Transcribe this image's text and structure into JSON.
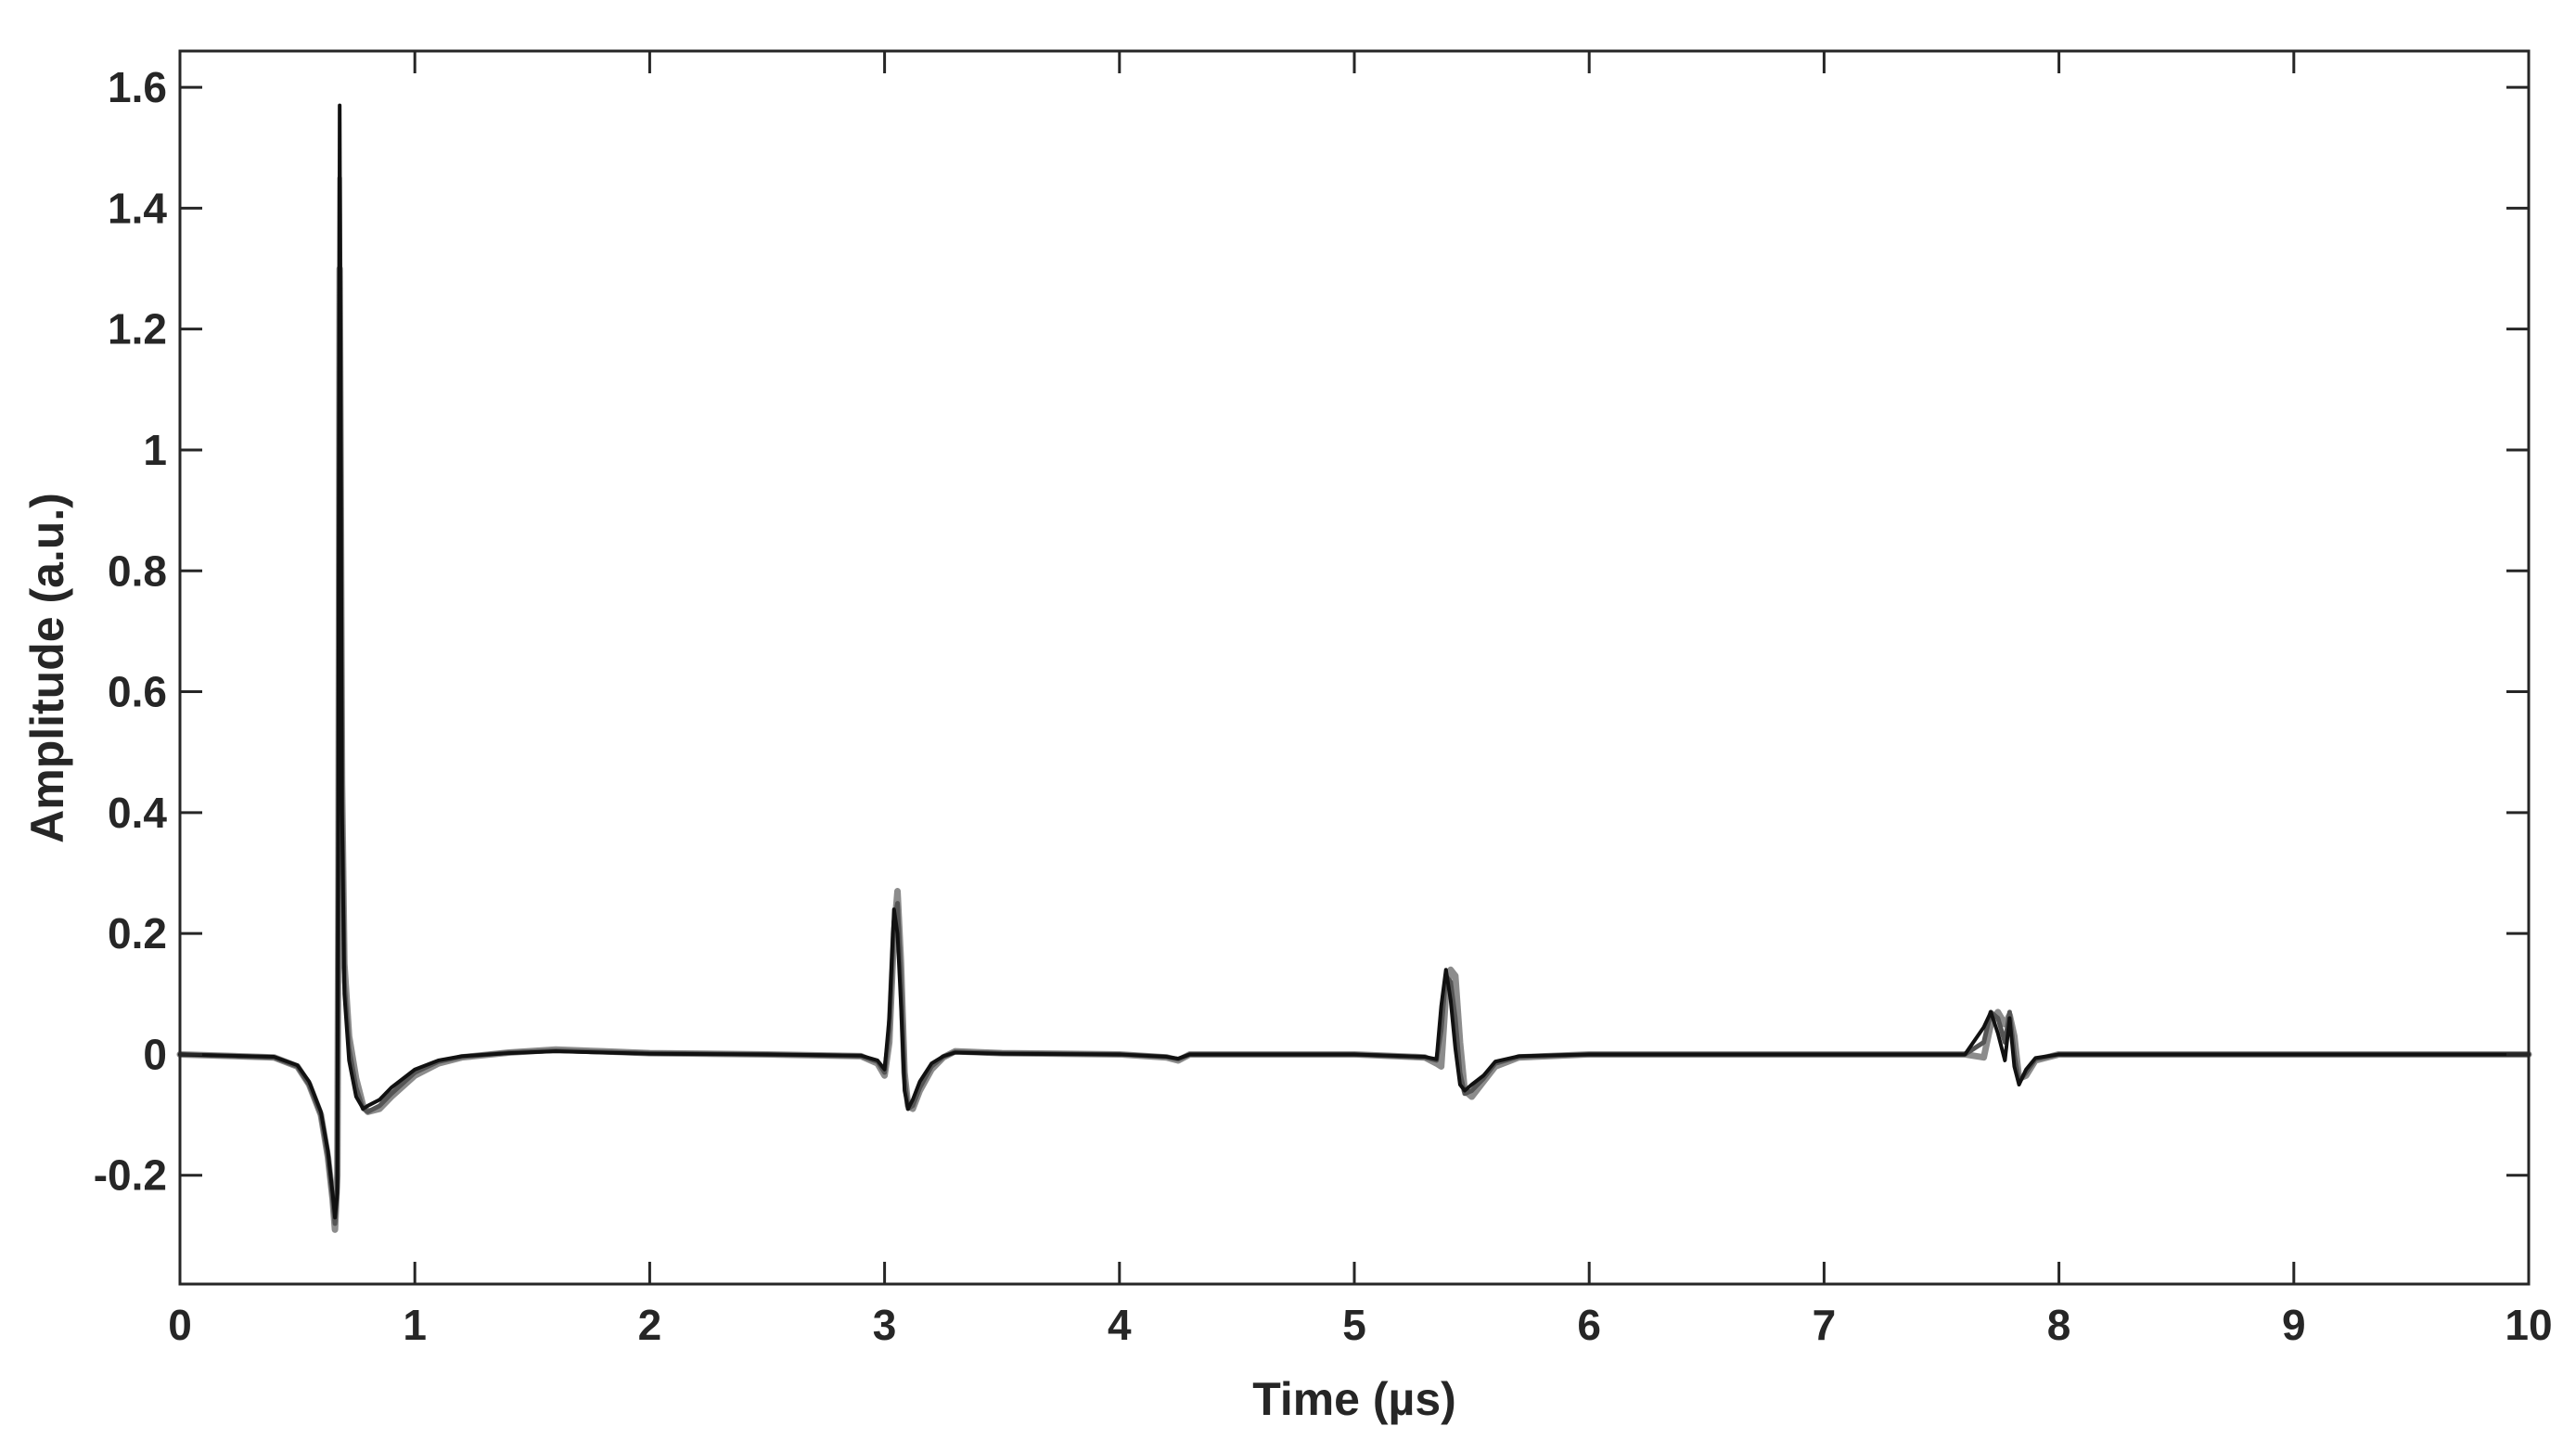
{
  "chart_data": {
    "type": "line",
    "title": "",
    "xlabel": "Time (µs)",
    "ylabel": "Amplitude (a.u.)",
    "xlim": [
      0,
      10
    ],
    "ylim": [
      -0.38,
      1.66
    ],
    "xticks": [
      0,
      1,
      2,
      3,
      4,
      5,
      6,
      7,
      8,
      9,
      10
    ],
    "xtick_labels": [
      "0",
      "1",
      "2",
      "3",
      "4",
      "5",
      "6",
      "7",
      "8",
      "9",
      "10"
    ],
    "yticks": [
      -0.2,
      0,
      0.2,
      0.4,
      0.6,
      0.8,
      1,
      1.2,
      1.4,
      1.6
    ],
    "ytick_labels": [
      "-0.2",
      "0",
      "0.2",
      "0.4",
      "0.6",
      "0.8",
      "1",
      "1.2",
      "1.4",
      "1.6"
    ],
    "grid": false,
    "legend": "none",
    "line_colors": [
      "#8c8c8c",
      "#555555",
      "#111111"
    ],
    "series": [
      {
        "color": "#8c8c8c",
        "width": 7,
        "x": [
          0,
          0.4,
          0.5,
          0.55,
          0.6,
          0.63,
          0.65,
          0.66,
          0.67,
          0.675,
          0.68,
          0.685,
          0.69,
          0.7,
          0.72,
          0.75,
          0.78,
          0.8,
          0.85,
          0.9,
          1.0,
          1.1,
          1.2,
          1.4,
          1.6,
          1.8,
          2.0,
          2.5,
          2.9,
          2.97,
          3.0,
          3.02,
          3.04,
          3.055,
          3.07,
          3.085,
          3.1,
          3.12,
          3.15,
          3.2,
          3.25,
          3.3,
          3.5,
          4.0,
          4.2,
          4.25,
          4.3,
          5.0,
          5.3,
          5.35,
          5.37,
          5.39,
          5.41,
          5.43,
          5.45,
          5.47,
          5.5,
          5.55,
          5.6,
          5.7,
          6.0,
          7.0,
          7.6,
          7.68,
          7.71,
          7.74,
          7.77,
          7.79,
          7.81,
          7.83,
          7.86,
          7.9,
          8.0,
          9.0,
          10.0
        ],
        "y": [
          0,
          -0.005,
          -0.02,
          -0.05,
          -0.1,
          -0.17,
          -0.24,
          -0.29,
          -0.2,
          0.3,
          1.3,
          0.9,
          0.45,
          0.15,
          0.03,
          -0.04,
          -0.085,
          -0.095,
          -0.09,
          -0.07,
          -0.035,
          -0.015,
          -0.005,
          0.003,
          0.008,
          0.005,
          0.002,
          0,
          -0.003,
          -0.015,
          -0.035,
          0.02,
          0.2,
          0.27,
          0.15,
          -0.03,
          -0.085,
          -0.09,
          -0.06,
          -0.025,
          -0.005,
          0.005,
          0.002,
          0,
          -0.005,
          -0.01,
          0,
          0,
          -0.005,
          -0.015,
          -0.02,
          0.1,
          0.14,
          0.13,
          0.02,
          -0.06,
          -0.07,
          -0.045,
          -0.02,
          -0.005,
          0,
          0,
          0,
          -0.005,
          0.05,
          0.07,
          0.05,
          0.065,
          0.03,
          -0.04,
          -0.035,
          -0.01,
          0,
          0,
          0
        ]
      },
      {
        "color": "#555555",
        "width": 5,
        "x": [
          0,
          0.4,
          0.5,
          0.55,
          0.6,
          0.63,
          0.65,
          0.66,
          0.67,
          0.675,
          0.68,
          0.685,
          0.69,
          0.7,
          0.72,
          0.75,
          0.78,
          0.8,
          0.85,
          0.9,
          1.0,
          1.1,
          1.2,
          1.4,
          1.6,
          1.8,
          2.0,
          2.5,
          2.9,
          2.97,
          3.0,
          3.02,
          3.04,
          3.055,
          3.07,
          3.085,
          3.1,
          3.12,
          3.15,
          3.2,
          3.25,
          3.3,
          3.5,
          4.0,
          4.2,
          4.25,
          4.3,
          5.0,
          5.3,
          5.35,
          5.37,
          5.39,
          5.41,
          5.43,
          5.45,
          5.47,
          5.5,
          5.55,
          5.6,
          5.7,
          6.0,
          7.0,
          7.6,
          7.68,
          7.71,
          7.74,
          7.77,
          7.79,
          7.81,
          7.83,
          7.86,
          7.9,
          8.0,
          9.0,
          10.0
        ],
        "y": [
          0,
          -0.005,
          -0.02,
          -0.05,
          -0.1,
          -0.17,
          -0.24,
          -0.28,
          -0.22,
          0.4,
          1.45,
          0.95,
          0.42,
          0.12,
          0.01,
          -0.055,
          -0.09,
          -0.095,
          -0.085,
          -0.065,
          -0.03,
          -0.012,
          -0.004,
          0.003,
          0.006,
          0.004,
          0.002,
          0,
          -0.003,
          -0.012,
          -0.03,
          0.04,
          0.22,
          0.25,
          0.12,
          -0.04,
          -0.09,
          -0.085,
          -0.055,
          -0.02,
          -0.004,
          0.004,
          0.002,
          0,
          -0.004,
          -0.008,
          0,
          0,
          -0.005,
          -0.01,
          0.04,
          0.13,
          0.12,
          0.06,
          -0.03,
          -0.065,
          -0.06,
          -0.04,
          -0.015,
          -0.004,
          0,
          0,
          0,
          0.02,
          0.07,
          0.06,
          0.02,
          0.07,
          0.0,
          -0.045,
          -0.03,
          -0.008,
          0,
          0,
          0
        ]
      },
      {
        "color": "#111111",
        "width": 4,
        "x": [
          0,
          0.4,
          0.5,
          0.55,
          0.6,
          0.63,
          0.65,
          0.66,
          0.67,
          0.675,
          0.68,
          0.685,
          0.69,
          0.7,
          0.72,
          0.75,
          0.78,
          0.8,
          0.85,
          0.9,
          1.0,
          1.1,
          1.2,
          1.4,
          1.6,
          1.8,
          2.0,
          2.5,
          2.9,
          2.97,
          3.0,
          3.02,
          3.04,
          3.055,
          3.07,
          3.085,
          3.1,
          3.12,
          3.15,
          3.2,
          3.25,
          3.3,
          3.5,
          4.0,
          4.2,
          4.25,
          4.3,
          5.0,
          5.3,
          5.35,
          5.37,
          5.39,
          5.41,
          5.43,
          5.45,
          5.47,
          5.5,
          5.55,
          5.6,
          5.7,
          6.0,
          7.0,
          7.6,
          7.68,
          7.71,
          7.74,
          7.77,
          7.79,
          7.81,
          7.83,
          7.86,
          7.9,
          8.0,
          9.0,
          10.0
        ],
        "y": [
          0,
          -0.004,
          -0.018,
          -0.045,
          -0.095,
          -0.16,
          -0.23,
          -0.27,
          -0.23,
          0.6,
          1.57,
          1.0,
          0.4,
          0.1,
          -0.01,
          -0.07,
          -0.09,
          -0.085,
          -0.075,
          -0.055,
          -0.025,
          -0.01,
          -0.003,
          0.002,
          0.005,
          0.003,
          0.001,
          0,
          -0.002,
          -0.01,
          -0.025,
          0.06,
          0.24,
          0.2,
          0.08,
          -0.06,
          -0.09,
          -0.075,
          -0.045,
          -0.015,
          -0.003,
          0.003,
          0.001,
          0,
          -0.004,
          -0.007,
          0,
          0,
          -0.004,
          -0.008,
          0.08,
          0.14,
          0.09,
          0.01,
          -0.05,
          -0.06,
          -0.05,
          -0.035,
          -0.012,
          -0.003,
          0,
          0,
          0,
          0.045,
          0.07,
          0.035,
          -0.01,
          0.06,
          -0.02,
          -0.05,
          -0.025,
          -0.006,
          0,
          0,
          0
        ]
      }
    ]
  }
}
